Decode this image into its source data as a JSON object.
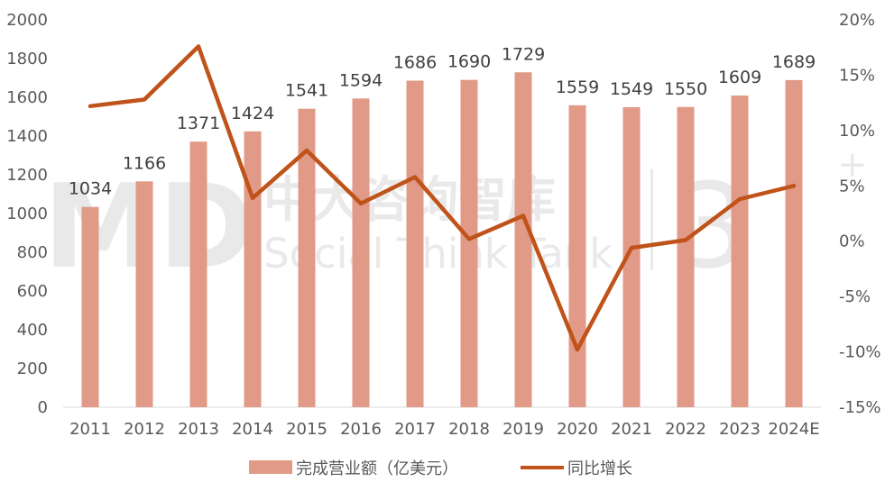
{
  "chart_data": {
    "type": "bar+line",
    "categories": [
      "2011",
      "2012",
      "2013",
      "2014",
      "2015",
      "2016",
      "2017",
      "2018",
      "2019",
      "2020",
      "2021",
      "2022",
      "2023",
      "2024E"
    ],
    "series": [
      {
        "name": "完成营业额（亿美元）",
        "type": "bar",
        "axis": "left",
        "values": [
          1034,
          1166,
          1371,
          1424,
          1541,
          1594,
          1686,
          1690,
          1729,
          1559,
          1549,
          1550,
          1609,
          1689
        ],
        "color": "#e09a87"
      },
      {
        "name": "同比增长",
        "type": "line",
        "axis": "right",
        "values": [
          12.2,
          12.8,
          17.6,
          3.9,
          8.2,
          3.4,
          5.8,
          0.2,
          2.3,
          -9.8,
          -0.6,
          0.1,
          3.8,
          5.0
        ],
        "color": "#c0531a"
      }
    ],
    "y_left": {
      "min": 0,
      "max": 2000,
      "ticks": [
        "0",
        "200",
        "400",
        "600",
        "800",
        "1000",
        "1200",
        "1400",
        "1600",
        "1800",
        "2000"
      ]
    },
    "y_right": {
      "min": -15,
      "max": 20,
      "ticks": [
        "-15%",
        "-10%",
        "-5%",
        "0%",
        "5%",
        "10%",
        "15%",
        "20%"
      ]
    },
    "legend": {
      "position": "bottom"
    },
    "watermark": {
      "brand": "中大咨询智库",
      "tagline": "Social Think Tank"
    }
  }
}
